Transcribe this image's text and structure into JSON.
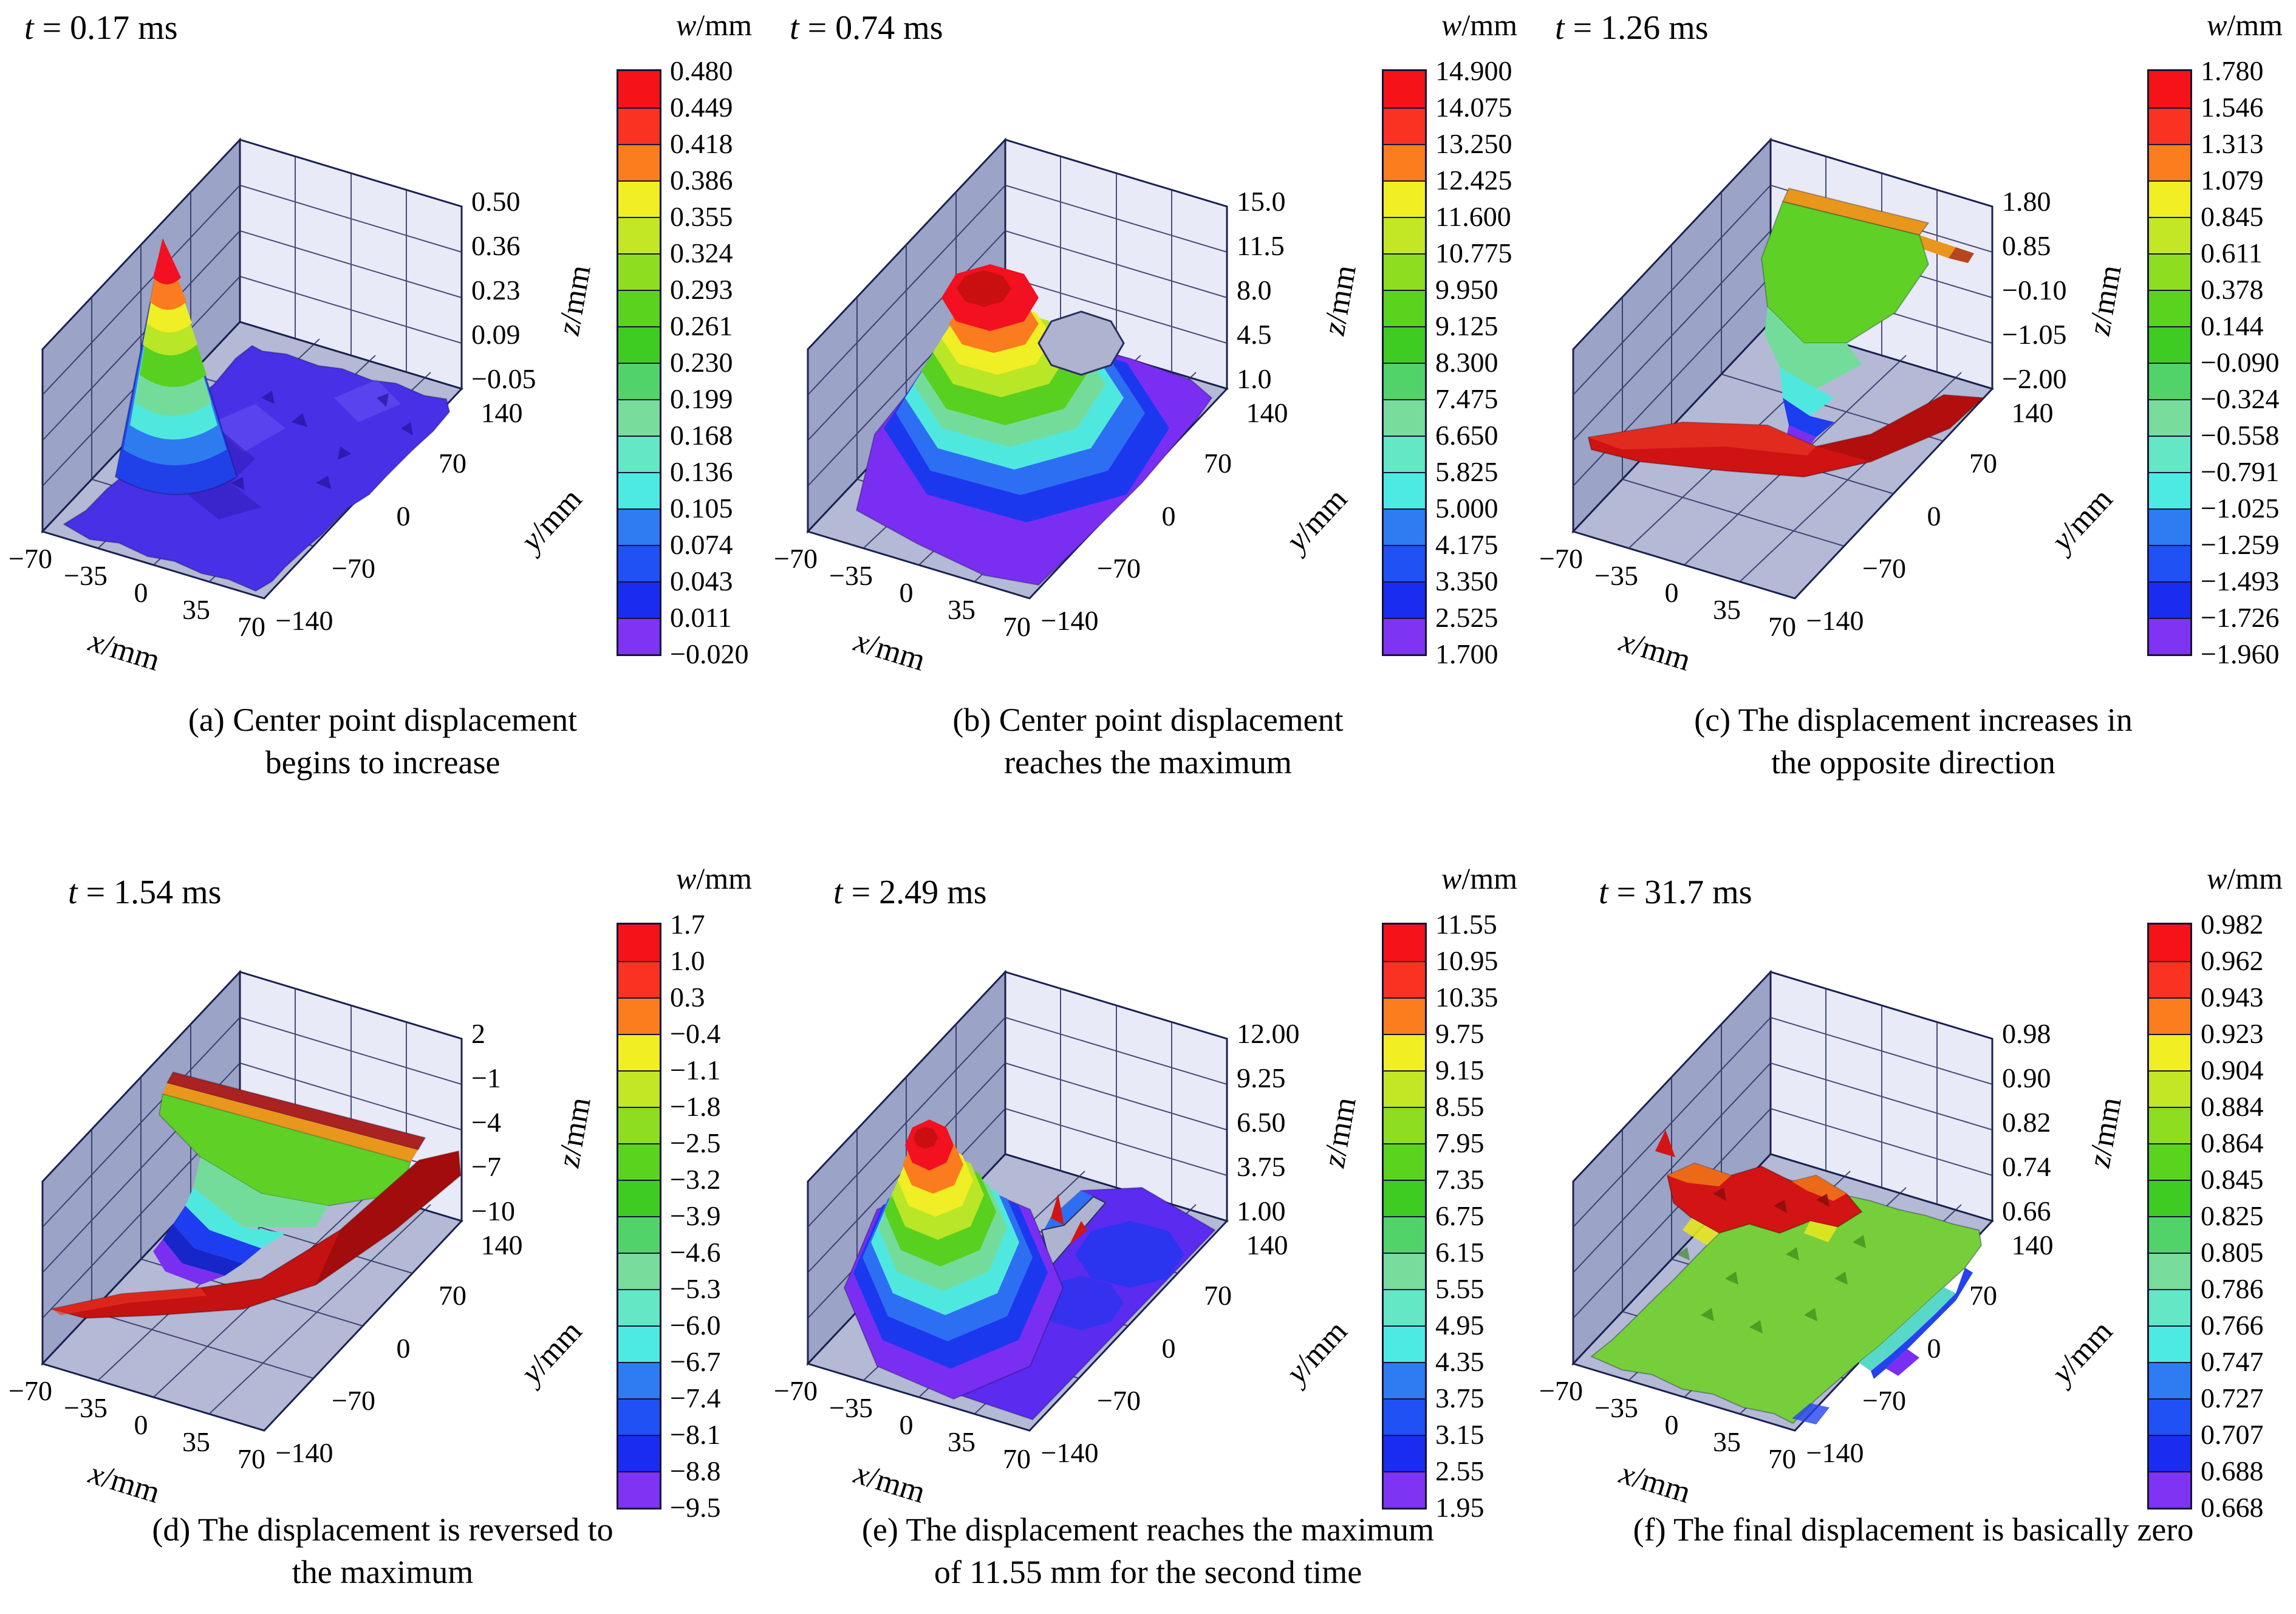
{
  "figure": {
    "shared": {
      "colorbar_title": {
        "sym": "w",
        "unit": "/mm"
      },
      "colorbar_colors": [
        "#f51218",
        "#f93222",
        "#fb7d1e",
        "#f2ee24",
        "#c3e724",
        "#8edd20",
        "#5ad31e",
        "#3ecb22",
        "#52d36a",
        "#77dc9c",
        "#63e7c5",
        "#4deae2",
        "#2e7bf2",
        "#1f51f4",
        "#1a2cf0",
        "#7f33f3"
      ],
      "x_axis": {
        "sym": "x",
        "unit": "/mm",
        "ticks": [
          "−70",
          "−35",
          "0",
          "35",
          "70"
        ]
      },
      "y_axis": {
        "sym": "y",
        "unit": "/mm",
        "ticks": [
          "−140",
          "−70",
          "0",
          "70",
          "140"
        ]
      },
      "z_axis": {
        "sym": "z",
        "unit": "/mm"
      }
    },
    "panels": [
      {
        "id": "a",
        "time": {
          "sym": "t",
          "rest": "= 0.17 ms"
        },
        "z_ticks": [
          "0.50",
          "0.36",
          "0.23",
          "0.09",
          "−0.05"
        ],
        "colorbar_labels": [
          "0.480",
          "0.449",
          "0.418",
          "0.386",
          "0.355",
          "0.324",
          "0.293",
          "0.261",
          "0.230",
          "0.199",
          "0.168",
          "0.136",
          "0.105",
          "0.074",
          "0.043",
          "0.011",
          "−0.020"
        ],
        "caption": [
          "(a) Center point displacement",
          "begins to increase"
        ]
      },
      {
        "id": "b",
        "time": {
          "sym": "t",
          "rest": "= 0.74 ms"
        },
        "z_ticks": [
          "15.0",
          "11.5",
          "8.0",
          "4.5",
          "1.0"
        ],
        "colorbar_labels": [
          "14.900",
          "14.075",
          "13.250",
          "12.425",
          "11.600",
          "10.775",
          "9.950",
          "9.125",
          "8.300",
          "7.475",
          "6.650",
          "5.825",
          "5.000",
          "4.175",
          "3.350",
          "2.525",
          "1.700"
        ],
        "caption": [
          "(b) Center point displacement",
          "reaches the maximum"
        ]
      },
      {
        "id": "c",
        "time": {
          "sym": "t",
          "rest": "= 1.26 ms"
        },
        "z_ticks": [
          "1.80",
          "0.85",
          "−0.10",
          "−1.05",
          "−2.00"
        ],
        "colorbar_labels": [
          "1.780",
          "1.546",
          "1.313",
          "1.079",
          "0.845",
          "0.611",
          "0.378",
          "0.144",
          "−0.090",
          "−0.324",
          "−0.558",
          "−0.791",
          "−1.025",
          "−1.259",
          "−1.493",
          "−1.726",
          "−1.960"
        ],
        "caption": [
          "(c) The displacement increases in",
          "the opposite direction"
        ]
      },
      {
        "id": "d",
        "time": {
          "sym": "t",
          "rest": "= 1.54 ms"
        },
        "z_ticks": [
          "2",
          "−1",
          "−4",
          "−7",
          "−10"
        ],
        "colorbar_labels": [
          "1.7",
          "1.0",
          "0.3",
          "−0.4",
          "−1.1",
          "−1.8",
          "−2.5",
          "−3.2",
          "−3.9",
          "−4.6",
          "−5.3",
          "−6.0",
          "−6.7",
          "−7.4",
          "−8.1",
          "−8.8",
          "−9.5"
        ],
        "caption": [
          "(d) The displacement is reversed to",
          "the maximum"
        ]
      },
      {
        "id": "e",
        "time": {
          "sym": "t",
          "rest": "= 2.49 ms"
        },
        "z_ticks": [
          "12.00",
          "9.25",
          "6.50",
          "3.75",
          "1.00"
        ],
        "colorbar_labels": [
          "11.55",
          "10.95",
          "10.35",
          "9.75",
          "9.15",
          "8.55",
          "7.95",
          "7.35",
          "6.75",
          "6.15",
          "5.55",
          "4.95",
          "4.35",
          "3.75",
          "3.15",
          "2.55",
          "1.95"
        ],
        "caption": [
          "(e) The displacement reaches the maximum",
          "of 11.55 mm for the second time"
        ]
      },
      {
        "id": "f",
        "time": {
          "sym": "t",
          "rest": "= 31.7 ms"
        },
        "z_ticks": [
          "0.98",
          "0.90",
          "0.82",
          "0.74",
          "0.66"
        ],
        "colorbar_labels": [
          "0.982",
          "0.962",
          "0.943",
          "0.923",
          "0.904",
          "0.884",
          "0.864",
          "0.845",
          "0.825",
          "0.805",
          "0.786",
          "0.766",
          "0.747",
          "0.727",
          "0.707",
          "0.688",
          "0.668"
        ],
        "caption": [
          "(f) The final displacement is basically zero",
          ""
        ]
      }
    ]
  },
  "chart_data": [
    {
      "type": "heatmap",
      "subtype": "3d-surface",
      "panel": "a",
      "title": "t = 0.17 ms",
      "xlabel": "x/mm",
      "ylabel": "y/mm",
      "zlabel": "z/mm",
      "legend_title": "w/mm",
      "legend_position": "right",
      "x_range": [
        -70,
        70
      ],
      "y_range": [
        -140,
        140
      ],
      "x_ticks": [
        -70,
        -35,
        0,
        35,
        70
      ],
      "y_ticks": [
        140,
        70,
        0,
        -70,
        -140
      ],
      "z_ticks": [
        0.5,
        0.36,
        0.23,
        0.09,
        -0.05
      ],
      "w_levels": [
        0.48,
        0.449,
        0.418,
        0.386,
        0.355,
        0.324,
        0.293,
        0.261,
        0.23,
        0.199,
        0.168,
        0.136,
        0.105,
        0.074,
        0.043,
        0.011,
        -0.02
      ],
      "w_range": [
        -0.02,
        0.48
      ],
      "grid": true,
      "annotation": "(a) Center point displacement begins to increase",
      "shape": "flat noisy plate near zero with one sharp peak rising near x≈-30, y≈90"
    },
    {
      "type": "heatmap",
      "subtype": "3d-surface",
      "panel": "b",
      "title": "t = 0.74 ms",
      "xlabel": "x/mm",
      "ylabel": "y/mm",
      "zlabel": "z/mm",
      "legend_title": "w/mm",
      "legend_position": "right",
      "x_range": [
        -70,
        70
      ],
      "y_range": [
        -140,
        140
      ],
      "x_ticks": [
        -70,
        -35,
        0,
        35,
        70
      ],
      "y_ticks": [
        140,
        70,
        0,
        -70,
        -140
      ],
      "z_ticks": [
        15.0,
        11.5,
        8.0,
        4.5,
        1.0
      ],
      "w_levels": [
        14.9,
        14.075,
        13.25,
        12.425,
        11.6,
        10.775,
        9.95,
        9.125,
        8.3,
        7.475,
        6.65,
        5.825,
        5.0,
        4.175,
        3.35,
        2.525,
        1.7
      ],
      "w_range": [
        1.7,
        14.9
      ],
      "grid": true,
      "annotation": "(b) Center point displacement reaches the maximum",
      "shape": "large dome, red cap near 14.9 mm, with data hole at the center"
    },
    {
      "type": "heatmap",
      "subtype": "3d-surface",
      "panel": "c",
      "title": "t = 1.26 ms",
      "xlabel": "x/mm",
      "ylabel": "y/mm",
      "zlabel": "z/mm",
      "legend_title": "w/mm",
      "legend_position": "right",
      "x_range": [
        -70,
        70
      ],
      "y_range": [
        -140,
        140
      ],
      "x_ticks": [
        -70,
        -35,
        0,
        35,
        70
      ],
      "y_ticks": [
        140,
        70,
        0,
        -70,
        -140
      ],
      "z_ticks": [
        1.8,
        0.85,
        -0.1,
        -1.05,
        -2.0
      ],
      "w_levels": [
        1.78,
        1.546,
        1.313,
        1.079,
        0.845,
        0.611,
        0.378,
        0.144,
        -0.09,
        -0.324,
        -0.558,
        -0.791,
        -1.025,
        -1.259,
        -1.493,
        -1.726,
        -1.96
      ],
      "w_range": [
        -1.96,
        1.78
      ],
      "grid": true,
      "annotation": "(c) The displacement increases in the opposite direction",
      "shape": "saddle sheet: green/blue valley dipping to −1.96 behind a raised red front wing"
    },
    {
      "type": "heatmap",
      "subtype": "3d-surface",
      "panel": "d",
      "title": "t = 1.54 ms",
      "xlabel": "x/mm",
      "ylabel": "y/mm",
      "zlabel": "z/mm",
      "legend_title": "w/mm",
      "legend_position": "right",
      "x_range": [
        -70,
        70
      ],
      "y_range": [
        -140,
        140
      ],
      "x_ticks": [
        -70,
        -35,
        0,
        35,
        70
      ],
      "y_ticks": [
        140,
        70,
        0,
        -70,
        -140
      ],
      "z_ticks": [
        2,
        -1,
        -4,
        -7,
        -10
      ],
      "w_levels": [
        1.7,
        1.0,
        0.3,
        -0.4,
        -1.1,
        -1.8,
        -2.5,
        -3.2,
        -3.9,
        -4.6,
        -5.3,
        -6.0,
        -6.7,
        -7.4,
        -8.1,
        -8.8,
        -9.5
      ],
      "w_range": [
        -9.5,
        1.7
      ],
      "grid": true,
      "annotation": "(d) The displacement is reversed to the maximum",
      "shape": "deep reversed bowl reaching −9.5 mm at center with red rim sheet"
    },
    {
      "type": "heatmap",
      "subtype": "3d-surface",
      "panel": "e",
      "title": "t = 2.49 ms",
      "xlabel": "x/mm",
      "ylabel": "y/mm",
      "zlabel": "z/mm",
      "legend_title": "w/mm",
      "legend_position": "right",
      "x_range": [
        -70,
        70
      ],
      "y_range": [
        -140,
        140
      ],
      "x_ticks": [
        -70,
        -35,
        0,
        35,
        70
      ],
      "y_ticks": [
        140,
        70,
        0,
        -70,
        -140
      ],
      "z_ticks": [
        12.0,
        9.25,
        6.5,
        3.75,
        1.0
      ],
      "w_levels": [
        11.55,
        10.95,
        10.35,
        9.75,
        9.15,
        8.55,
        7.95,
        7.35,
        6.75,
        6.15,
        5.55,
        4.95,
        4.35,
        3.75,
        3.15,
        2.55,
        1.95
      ],
      "w_range": [
        1.95,
        11.55
      ],
      "grid": true,
      "annotation": "(e) The displacement reaches the maximum of 11.55 mm for the second time",
      "shape": "dome on the left (peak 11.55 mm) with flat violet plain on the right"
    },
    {
      "type": "heatmap",
      "subtype": "3d-surface",
      "panel": "f",
      "title": "t = 31.7 ms",
      "xlabel": "x/mm",
      "ylabel": "y/mm",
      "zlabel": "z/mm",
      "legend_title": "w/mm",
      "legend_position": "right",
      "x_range": [
        -70,
        70
      ],
      "y_range": [
        -140,
        140
      ],
      "x_ticks": [
        -70,
        -35,
        0,
        35,
        70
      ],
      "y_ticks": [
        140,
        70,
        0,
        -70,
        -140
      ],
      "z_ticks": [
        0.98,
        0.9,
        0.82,
        0.74,
        0.66
      ],
      "w_levels": [
        0.982,
        0.962,
        0.943,
        0.923,
        0.904,
        0.884,
        0.864,
        0.845,
        0.825,
        0.805,
        0.786,
        0.766,
        0.747,
        0.727,
        0.707,
        0.688,
        0.668
      ],
      "w_range": [
        0.668,
        0.982
      ],
      "grid": true,
      "annotation": "(f) The final displacement is basically zero",
      "shape": "rough noisy surface around ~0.8 mm: red patch back-left, green middle, blue front edge"
    }
  ]
}
